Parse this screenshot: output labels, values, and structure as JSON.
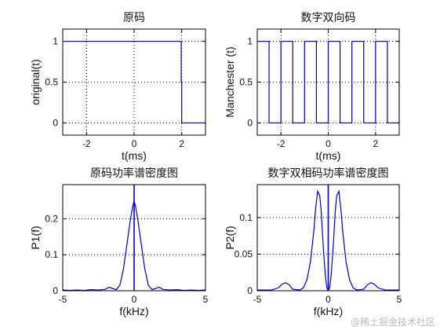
{
  "watermark": "@稀土掘金技术社区",
  "chart_data": [
    {
      "type": "line",
      "title": "原码",
      "xlabel": "t(ms)",
      "ylabel": "original(t)",
      "xlim": [
        -3,
        3
      ],
      "ylim": [
        -0.15,
        1.15
      ],
      "xticks": [
        -2,
        0,
        2
      ],
      "xtick_labels": [
        "-2",
        "0",
        "2"
      ],
      "yticks": [
        0,
        0.5,
        1
      ],
      "ytick_labels": [
        "0",
        "0.5",
        "1"
      ],
      "grid": true,
      "series": [
        {
          "x": [
            -3,
            1.98,
            1.98,
            2,
            2,
            3
          ],
          "y": [
            1,
            1,
            0.5,
            0.5,
            0,
            0
          ]
        }
      ]
    },
    {
      "type": "line",
      "title": "数字双向码",
      "xlabel": "t(ms)",
      "ylabel": "Manchester (t)",
      "xlim": [
        -3,
        3
      ],
      "ylim": [
        -0.15,
        1.15
      ],
      "xticks": [
        -2,
        0,
        2
      ],
      "xtick_labels": [
        "-2",
        "0",
        "2"
      ],
      "yticks": [
        0,
        0.5,
        1
      ],
      "ytick_labels": [
        "0",
        "0.5",
        "1"
      ],
      "grid": true,
      "series": [
        {
          "x": [
            -3,
            -2.5,
            -2.5,
            -2,
            -2,
            -1.5,
            -1.5,
            -1,
            -1,
            -0.5,
            -0.5,
            0,
            0,
            0.5,
            0.5,
            1,
            1,
            1.5,
            1.5,
            2,
            2,
            2.5,
            2.5,
            3,
            3
          ],
          "y": [
            1,
            1,
            0,
            0,
            1,
            1,
            0,
            0,
            1,
            1,
            0,
            0,
            1,
            1,
            0,
            0,
            1,
            1,
            0,
            0,
            1,
            1,
            0,
            0,
            0.5
          ]
        }
      ]
    },
    {
      "type": "line",
      "title": "原码功率谱密度图",
      "xlabel": "f(kHz)",
      "ylabel": "P1(f)",
      "xlim": [
        -5,
        5
      ],
      "ylim": [
        0,
        0.295
      ],
      "xticks": [
        -5,
        0,
        5
      ],
      "xtick_labels": [
        "-5",
        "0",
        "5"
      ],
      "yticks": [
        0,
        0.1,
        0.2
      ],
      "ytick_labels": [
        "0",
        "0.1",
        "0.2"
      ],
      "grid": true,
      "spike": {
        "x": 0,
        "y": 0.295
      },
      "series": [
        {
          "x": [
            -5,
            -4.5,
            -4,
            -3.5,
            -3,
            -2.5,
            -2,
            -1.75,
            -1.5,
            -1.25,
            -1,
            -0.75,
            -0.5,
            -0.25,
            -0.1,
            0,
            0.1,
            0.25,
            0.5,
            0.75,
            1,
            1.25,
            1.5,
            1.75,
            2,
            2.5,
            3,
            3.5,
            4,
            4.5,
            5
          ],
          "y": [
            0.002,
            0.001,
            0.002,
            0.001,
            0.003,
            0.002,
            0.004,
            0.01,
            0.006,
            0.003,
            0.015,
            0.06,
            0.13,
            0.2,
            0.235,
            0.25,
            0.235,
            0.2,
            0.13,
            0.06,
            0.015,
            0.003,
            0.006,
            0.01,
            0.004,
            0.002,
            0.003,
            0.001,
            0.002,
            0.001,
            0.002
          ]
        }
      ]
    },
    {
      "type": "line",
      "title": "数字双相码功率谱密度图",
      "xlabel": "f(kHz)",
      "ylabel": "P2(f)",
      "xlim": [
        -5,
        5
      ],
      "ylim": [
        0,
        0.145
      ],
      "xticks": [
        -5,
        0,
        5
      ],
      "xtick_labels": [
        "-5",
        "0",
        "5"
      ],
      "yticks": [
        0,
        0.05,
        0.1
      ],
      "ytick_labels": [
        "0",
        "0.05",
        "0.1"
      ],
      "grid": true,
      "spike": {
        "x": 0,
        "y": 0.145
      },
      "series": [
        {
          "x": [
            -5,
            -4.5,
            -4,
            -3.5,
            -3.25,
            -3,
            -2.75,
            -2.5,
            -2,
            -1.75,
            -1.5,
            -1.25,
            -1,
            -0.9,
            -0.75,
            -0.6,
            -0.5,
            -0.35,
            -0.2,
            -0.1,
            0,
            0.1,
            0.2,
            0.35,
            0.5,
            0.6,
            0.75,
            0.9,
            1,
            1.25,
            1.5,
            1.75,
            2,
            2.5,
            2.75,
            3,
            3.25,
            3.5,
            4,
            4.5,
            5
          ],
          "y": [
            0.001,
            0.001,
            0.001,
            0.004,
            0.009,
            0.011,
            0.008,
            0.002,
            0.001,
            0.004,
            0.015,
            0.04,
            0.085,
            0.11,
            0.136,
            0.13,
            0.11,
            0.06,
            0.02,
            0.004,
            0.0,
            0.004,
            0.02,
            0.06,
            0.11,
            0.13,
            0.136,
            0.11,
            0.085,
            0.04,
            0.015,
            0.004,
            0.001,
            0.002,
            0.008,
            0.011,
            0.009,
            0.004,
            0.001,
            0.001,
            0.001
          ]
        }
      ]
    }
  ]
}
